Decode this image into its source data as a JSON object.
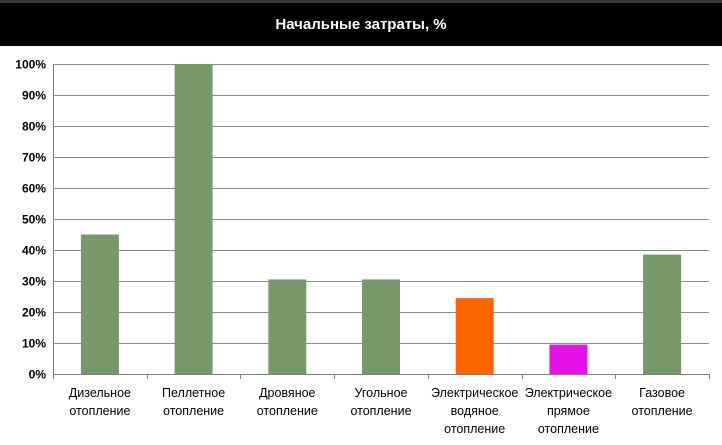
{
  "chart_data": {
    "type": "bar",
    "title": "Начальные затраты, %",
    "xlabel": "",
    "ylabel": "",
    "ylim": [
      0,
      100
    ],
    "yticks": [
      "0%",
      "10%",
      "20%",
      "30%",
      "40%",
      "50%",
      "60%",
      "70%",
      "80%",
      "90%",
      "100%"
    ],
    "grid": true,
    "categories": [
      [
        "Дизельное",
        "отопление"
      ],
      [
        "Пеллетное",
        "отопление"
      ],
      [
        "Дровяное",
        "отопление"
      ],
      [
        "Угольное",
        "отопление"
      ],
      [
        "Электрическое",
        "водяное",
        "отопление"
      ],
      [
        "Электрическое",
        "прямое",
        "отопление"
      ],
      [
        "Газовое",
        "отопление"
      ]
    ],
    "values": [
      45,
      100,
      30.5,
      30.5,
      24.5,
      9.5,
      38.5
    ],
    "colors": [
      "#77996a",
      "#77996a",
      "#77996a",
      "#77996a",
      "#ff6600",
      "#e60fe6",
      "#77996a"
    ]
  }
}
